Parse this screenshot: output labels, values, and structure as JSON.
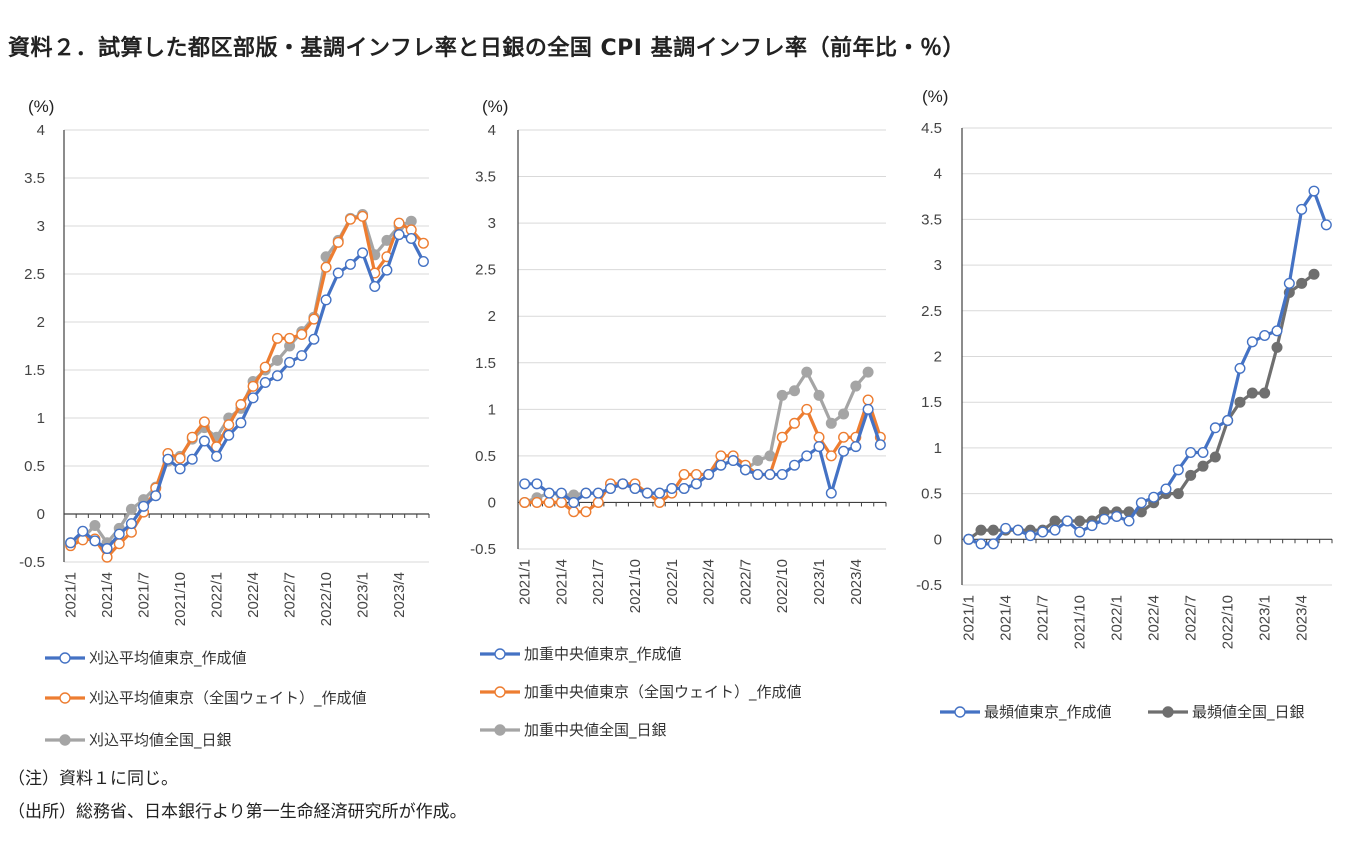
{
  "title": "資料２．試算した都区部版・基調インフレ率と日銀の全国 CPI 基調インフレ率（前年比・％）",
  "notes": [
    "（注）資料１に同じ。",
    "（出所）総務省、日本銀行より第一生命経済研究所が作成。"
  ],
  "colors": {
    "blue": "#4472C4",
    "orange": "#ED7D31",
    "gray": "#A5A5A5",
    "darkgray": "#6F6F6F",
    "grid": "#D9D9D9"
  },
  "chart_data": [
    {
      "type": "line",
      "unit_label": "(%)",
      "ylim": [
        -0.5,
        4
      ],
      "yticks": [
        "-0.5",
        "0",
        "0.5",
        "1",
        "1.5",
        "2",
        "2.5",
        "3",
        "3.5",
        "4"
      ],
      "categories": [
        "2021/1",
        "2021/2",
        "2021/3",
        "2021/4",
        "2021/5",
        "2021/6",
        "2021/7",
        "2021/8",
        "2021/9",
        "2021/10",
        "2021/11",
        "2021/12",
        "2022/1",
        "2022/2",
        "2022/3",
        "2022/4",
        "2022/5",
        "2022/6",
        "2022/7",
        "2022/8",
        "2022/9",
        "2022/10",
        "2022/11",
        "2022/12",
        "2023/1",
        "2023/2",
        "2023/3",
        "2023/4",
        "2023/5",
        "2023/6"
      ],
      "tick_labels": [
        "2021/1",
        "2021/4",
        "2021/7",
        "2021/10",
        "2022/1",
        "2022/4",
        "2022/7",
        "2022/10",
        "2023/1",
        "2023/4"
      ],
      "series": [
        {
          "name": "刈込平均値全国_日銀",
          "color": "gray",
          "marker": "filled",
          "values": [
            -0.3,
            -0.25,
            -0.12,
            -0.3,
            -0.15,
            0.05,
            0.15,
            0.28,
            0.55,
            0.6,
            0.78,
            0.9,
            0.8,
            1.0,
            1.1,
            1.38,
            1.5,
            1.6,
            1.75,
            1.9,
            2.05,
            2.68,
            2.85,
            3.08,
            3.12,
            2.7,
            2.85,
            3.0,
            3.05,
            null
          ]
        },
        {
          "name": "刈込平均値東京（全国ウェイト）_作成値",
          "color": "orange",
          "marker": "hollow",
          "values": [
            -0.33,
            -0.27,
            -0.26,
            -0.45,
            -0.31,
            -0.19,
            0.02,
            0.27,
            0.63,
            0.58,
            0.8,
            0.96,
            0.7,
            0.93,
            1.14,
            1.33,
            1.53,
            1.83,
            1.83,
            1.87,
            2.03,
            2.57,
            2.83,
            3.07,
            3.1,
            2.51,
            2.68,
            3.03,
            2.96,
            2.82
          ]
        },
        {
          "name": "刈込平均値東京_作成値",
          "color": "blue",
          "marker": "hollow",
          "values": [
            -0.3,
            -0.18,
            -0.28,
            -0.36,
            -0.21,
            -0.1,
            0.08,
            0.19,
            0.57,
            0.47,
            0.57,
            0.76,
            0.6,
            0.82,
            0.95,
            1.21,
            1.37,
            1.44,
            1.58,
            1.65,
            1.82,
            2.23,
            2.51,
            2.6,
            2.72,
            2.37,
            2.54,
            2.91,
            2.87,
            2.63
          ]
        }
      ],
      "legend": [
        "刈込平均値東京_作成値",
        "刈込平均値東京（全国ウェイト）_作成値",
        "刈込平均値全国_日銀"
      ]
    },
    {
      "type": "line",
      "unit_label": "(%)",
      "ylim": [
        -0.5,
        4
      ],
      "yticks": [
        "-0.5",
        "0",
        "0.5",
        "1",
        "1.5",
        "2",
        "2.5",
        "3",
        "3.5",
        "4"
      ],
      "categories": [
        "2021/1",
        "2021/2",
        "2021/3",
        "2021/4",
        "2021/5",
        "2021/6",
        "2021/7",
        "2021/8",
        "2021/9",
        "2021/10",
        "2021/11",
        "2021/12",
        "2022/1",
        "2022/2",
        "2022/3",
        "2022/4",
        "2022/5",
        "2022/6",
        "2022/7",
        "2022/8",
        "2022/9",
        "2022/10",
        "2022/11",
        "2022/12",
        "2023/1",
        "2023/2",
        "2023/3",
        "2023/4",
        "2023/5",
        "2023/6"
      ],
      "tick_labels": [
        "2021/1",
        "2021/4",
        "2021/7",
        "2021/10",
        "2022/1",
        "2022/4",
        "2022/7",
        "2022/10",
        "2023/1",
        "2023/4"
      ],
      "series": [
        {
          "name": "加重中央値全国_日銀",
          "color": "gray",
          "marker": "filled",
          "values": [
            0.0,
            0.05,
            0.1,
            0.08,
            0.08,
            0.1,
            0.1,
            0.15,
            0.2,
            0.15,
            0.1,
            0.1,
            0.15,
            0.15,
            0.2,
            0.3,
            0.4,
            0.45,
            0.35,
            0.45,
            0.5,
            1.15,
            1.2,
            1.4,
            1.15,
            0.85,
            0.95,
            1.25,
            1.4,
            null
          ]
        },
        {
          "name": "加重中央値東京（全国ウェイト）_作成値",
          "color": "orange",
          "marker": "hollow",
          "values": [
            0.0,
            0.0,
            0.0,
            0.0,
            -0.1,
            -0.1,
            0.0,
            0.2,
            0.2,
            0.2,
            0.1,
            0.0,
            0.1,
            0.3,
            0.3,
            0.3,
            0.5,
            0.5,
            0.4,
            0.3,
            0.3,
            0.7,
            0.85,
            1.0,
            0.7,
            0.5,
            0.7,
            0.7,
            1.1,
            0.7
          ]
        },
        {
          "name": "加重中央値東京_作成値",
          "color": "blue",
          "marker": "hollow",
          "values": [
            0.2,
            0.2,
            0.1,
            0.1,
            0.0,
            0.1,
            0.1,
            0.15,
            0.2,
            0.15,
            0.1,
            0.1,
            0.15,
            0.15,
            0.2,
            0.3,
            0.4,
            0.45,
            0.35,
            0.3,
            0.3,
            0.3,
            0.4,
            0.5,
            0.6,
            0.1,
            0.55,
            0.6,
            1.0,
            0.62
          ]
        }
      ],
      "legend": [
        "加重中央値東京_作成値",
        "加重中央値東京（全国ウェイト）_作成値",
        "加重中央値全国_日銀"
      ]
    },
    {
      "type": "line",
      "unit_label": "(%)",
      "ylim": [
        -0.5,
        4.5
      ],
      "yticks": [
        "-0.5",
        "0",
        "0.5",
        "1",
        "1.5",
        "2",
        "2.5",
        "3",
        "3.5",
        "4",
        "4.5"
      ],
      "categories": [
        "2021/1",
        "2021/2",
        "2021/3",
        "2021/4",
        "2021/5",
        "2021/6",
        "2021/7",
        "2021/8",
        "2021/9",
        "2021/10",
        "2021/11",
        "2021/12",
        "2022/1",
        "2022/2",
        "2022/3",
        "2022/4",
        "2022/5",
        "2022/6",
        "2022/7",
        "2022/8",
        "2022/9",
        "2022/10",
        "2022/11",
        "2022/12",
        "2023/1",
        "2023/2",
        "2023/3",
        "2023/4",
        "2023/5",
        "2023/6"
      ],
      "tick_labels": [
        "2021/1",
        "2021/4",
        "2021/7",
        "2021/10",
        "2022/1",
        "2022/4",
        "2022/7",
        "2022/10",
        "2023/1",
        "2023/4"
      ],
      "series": [
        {
          "name": "最頻値全国_日銀",
          "color": "darkgray",
          "marker": "filled",
          "values": [
            0.0,
            0.1,
            0.1,
            0.1,
            0.1,
            0.1,
            0.1,
            0.2,
            0.2,
            0.2,
            0.2,
            0.3,
            0.3,
            0.3,
            0.3,
            0.4,
            0.5,
            0.5,
            0.7,
            0.8,
            0.9,
            1.3,
            1.5,
            1.6,
            1.6,
            2.1,
            2.7,
            2.8,
            2.9,
            null
          ]
        },
        {
          "name": "最頻値東京_作成値",
          "color": "blue",
          "marker": "hollow",
          "values": [
            0.0,
            -0.05,
            -0.05,
            0.12,
            0.1,
            0.04,
            0.08,
            0.1,
            0.2,
            0.08,
            0.15,
            0.22,
            0.25,
            0.2,
            0.4,
            0.46,
            0.55,
            0.76,
            0.95,
            0.95,
            1.22,
            1.3,
            1.87,
            2.16,
            2.23,
            2.28,
            2.8,
            3.61,
            3.81,
            3.44
          ]
        }
      ],
      "legend": [
        "最頻値東京_作成値",
        "最頻値全国_日銀"
      ]
    }
  ]
}
